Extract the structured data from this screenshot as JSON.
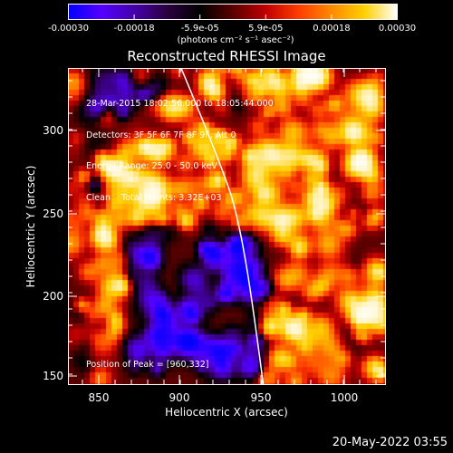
{
  "colorbar": {
    "tick_labels": [
      "-0.00030",
      "-0.00018",
      "-5.9e-05",
      "5.9e-05",
      "0.00018",
      "0.00030"
    ],
    "unit_label": "(photons cm⁻² s⁻¹ asec⁻²)",
    "range": [
      -0.0003,
      0.0003
    ],
    "colors": [
      "#0000ff",
      "#5500ff",
      "#4400aa",
      "#2a0040",
      "#000000",
      "#5a0000",
      "#c00000",
      "#ff3c00",
      "#ff8a00",
      "#ffd000",
      "#ffffff"
    ]
  },
  "title": "Reconstructed RHESSI Image",
  "info_lines": [
    "28-Mar-2015 18:02:56.000 to 18:05:44.000",
    "Detectors: 3F 5F 6F 7F 8F 9F, Att 0",
    "Energy Range: 25.0 - 50.0 keV",
    "Clean    Total counts: 3.32E+03"
  ],
  "peak_text": "Position of Peak = [960,332]",
  "x_axis": {
    "label": "Heliocentric X (arcsec)",
    "ticks": [
      "850",
      "900",
      "950",
      "1000"
    ],
    "range": [
      831,
      1025
    ]
  },
  "y_axis": {
    "label": "Heliocentric Y (arcsec)",
    "ticks": [
      "150",
      "200",
      "250",
      "300"
    ],
    "range": [
      145,
      342
    ]
  },
  "limb": {
    "description": "white solar limb line"
  },
  "timestamp": "20-May-2022 03:55"
}
